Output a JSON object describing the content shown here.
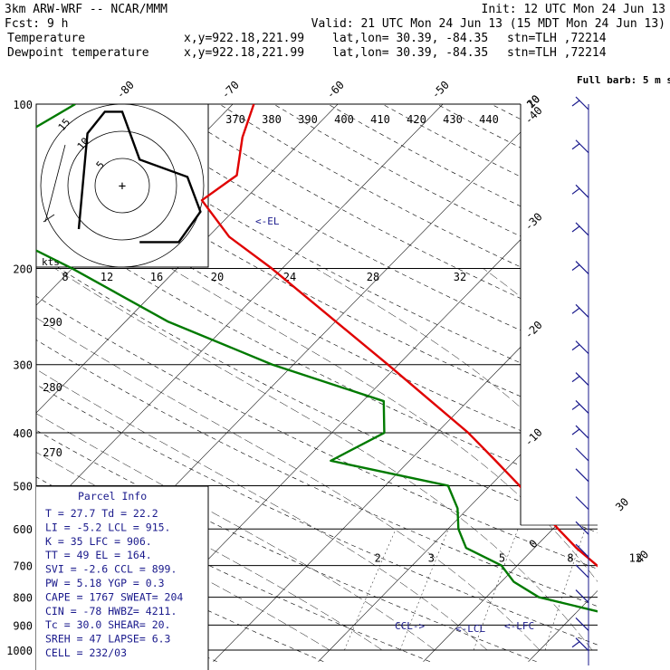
{
  "header": {
    "title_left": "3km ARW-WRF -- NCAR/MMM",
    "init": "Init: 12 UTC Mon 24 Jun 13",
    "fcst": "Fcst:    9 h",
    "valid": "Valid: 21 UTC Mon 24 Jun 13 (15 MDT Mon 24 Jun 13)",
    "legend": [
      {
        "label": "Temperature",
        "xy": "x,y=922.18,221.99",
        "latlon": "lat,lon= 30.39, -84.35",
        "stn": "stn=TLH ,72214",
        "color": "#e00000"
      },
      {
        "label": "Dewpoint temperature",
        "xy": "x,y=922.18,221.99",
        "latlon": "lat,lon= 30.39, -84.35",
        "stn": "stn=TLH ,72214",
        "color": "#007a00"
      }
    ]
  },
  "chart_data": {
    "type": "line",
    "title": "Skew-T log-P sounding",
    "y_axis": {
      "label": "pressure (hPa)",
      "scale": "log",
      "range": [
        1000,
        100
      ],
      "ticks": [
        100,
        200,
        300,
        400,
        500,
        600,
        700,
        800,
        900,
        1000
      ]
    },
    "temperature_ticks": [
      -80,
      -70,
      -60,
      -50,
      -40,
      -30,
      -20,
      -10,
      0,
      10,
      20,
      30,
      40
    ],
    "theta_labels": [
      370,
      380,
      390,
      400,
      410,
      420,
      430,
      440
    ],
    "theta_left_labels": [
      290,
      280,
      270
    ],
    "mixing_ratio_labels": [
      2,
      3,
      5,
      8,
      12,
      20
    ],
    "series": [
      {
        "name": "Temperature",
        "color": "#e00000",
        "points": [
          [
            1000,
            30
          ],
          [
            975,
            27.5
          ],
          [
            950,
            24.8
          ],
          [
            925,
            22.5
          ],
          [
            900,
            21
          ],
          [
            850,
            17.8
          ],
          [
            800,
            14.5
          ],
          [
            750,
            11
          ],
          [
            700,
            7.6
          ],
          [
            650,
            4
          ],
          [
            600,
            0.5
          ],
          [
            550,
            -3.2
          ],
          [
            500,
            -7.2
          ],
          [
            450,
            -11.8
          ],
          [
            400,
            -17
          ],
          [
            350,
            -23.5
          ],
          [
            300,
            -31
          ],
          [
            250,
            -40
          ],
          [
            200,
            -51
          ],
          [
            175,
            -58
          ],
          [
            150,
            -64
          ],
          [
            135,
            -63
          ],
          [
            115,
            -66
          ],
          [
            100,
            -68
          ]
        ]
      },
      {
        "name": "Dewpoint temperature",
        "color": "#007a00",
        "points": [
          [
            1000,
            21
          ],
          [
            975,
            21.5
          ],
          [
            950,
            21.5
          ],
          [
            925,
            20.2
          ],
          [
            900,
            17
          ],
          [
            850,
            12
          ],
          [
            800,
            5
          ],
          [
            750,
            1.2
          ],
          [
            700,
            -1.5
          ],
          [
            650,
            -6.5
          ],
          [
            600,
            -9
          ],
          [
            550,
            -11
          ],
          [
            500,
            -14
          ],
          [
            450,
            -27.5
          ],
          [
            400,
            -25
          ],
          [
            350,
            -28
          ],
          [
            300,
            -42
          ],
          [
            250,
            -56
          ],
          [
            200,
            -70
          ],
          [
            175,
            -79
          ],
          [
            150,
            -87
          ],
          [
            135,
            -89
          ],
          [
            120,
            -88
          ],
          [
            100,
            -85
          ]
        ]
      }
    ],
    "level_markers": [
      {
        "label": "<-EL",
        "p": 164
      },
      {
        "label": "CCL->",
        "p": 899
      },
      {
        "label": "<-LCL",
        "p": 915
      },
      {
        "label": "<-LFC",
        "p": 906
      }
    ],
    "hodograph": {
      "units": "kts",
      "ring_labels": [
        "5",
        "10",
        "15"
      ],
      "points": [
        [
          -10,
          -10
        ],
        [
          -8,
          12
        ],
        [
          -4,
          17
        ],
        [
          0,
          17
        ],
        [
          4,
          6
        ],
        [
          15,
          2
        ],
        [
          18,
          -6
        ],
        [
          13,
          -13
        ],
        [
          4,
          -13
        ]
      ]
    },
    "wind_barbs_label": "Full barb: 5 m s⁻¹",
    "wind_barbs": [
      {
        "p": 100,
        "speed": 10
      },
      {
        "p": 120,
        "speed": 10
      },
      {
        "p": 145,
        "speed": 10
      },
      {
        "p": 170,
        "speed": 10
      },
      {
        "p": 200,
        "speed": 10
      },
      {
        "p": 240,
        "speed": 10
      },
      {
        "p": 280,
        "speed": 10
      },
      {
        "p": 320,
        "speed": 10
      },
      {
        "p": 360,
        "speed": 10
      },
      {
        "p": 400,
        "speed": 10
      },
      {
        "p": 440,
        "speed": 5
      },
      {
        "p": 480,
        "speed": 5
      },
      {
        "p": 540,
        "speed": 5
      },
      {
        "p": 600,
        "speed": 5
      },
      {
        "p": 660,
        "speed": 5
      },
      {
        "p": 720,
        "speed": 5
      },
      {
        "p": 800,
        "speed": 5
      },
      {
        "p": 900,
        "speed": 5
      },
      {
        "p": 980,
        "speed": 10
      }
    ]
  },
  "parcel_info": {
    "title": "Parcel Info",
    "rows": [
      "T   =   27.7  Td =  22.2",
      "LI  =   -5.2  LCL =  915.",
      "K   =     35  LFC =  906.",
      "TT  =     49  EL  =  164.",
      "SVI =   -2.6  CCL =  899.",
      "PW  =   5.18  YGP =   0.3",
      "CAPE =  1767  SWEAT=  204",
      "CIN  =   -78  HWBZ= 4211.",
      "Tc  =   30.0  SHEAR=  20.",
      "SREH =    47  LAPSE=  6.3",
      "CELL = 232/03"
    ]
  },
  "colors": {
    "temperature": "#e00000",
    "dewpoint": "#007a00",
    "annot": "#1a1a8c"
  }
}
